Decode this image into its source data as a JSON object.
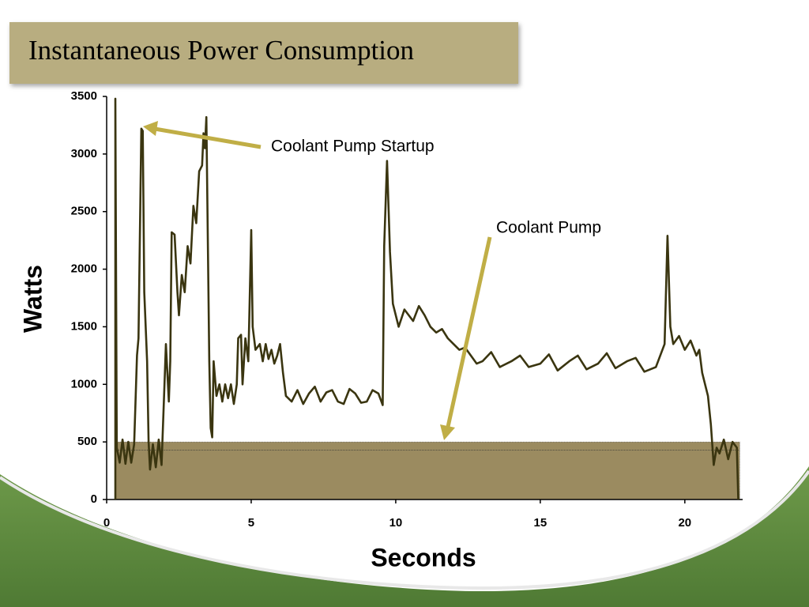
{
  "chart_data": {
    "type": "line",
    "title": "Instantaneous Power Consumption",
    "x_label": "Seconds",
    "y_label": "Watts",
    "xlim": [
      0,
      22
    ],
    "ylim": [
      0,
      3500
    ],
    "xticks": [
      0,
      5,
      10,
      15,
      20
    ],
    "yticks": [
      0,
      500,
      1000,
      1500,
      2000,
      2500,
      3000,
      3500
    ],
    "color": "#3a3510",
    "band": {
      "x": [
        0.3,
        21.9
      ],
      "value": 500,
      "color": "#9b8b60"
    },
    "reference_line": 430,
    "x": [
      0.3,
      0.3,
      0.35,
      0.45,
      0.55,
      0.65,
      0.75,
      0.85,
      0.95,
      1.05,
      1.1,
      1.2,
      1.25,
      1.3,
      1.4,
      1.45,
      1.5,
      1.6,
      1.7,
      1.8,
      1.9,
      2.0,
      2.05,
      2.15,
      2.2,
      2.25,
      2.35,
      2.45,
      2.5,
      2.6,
      2.7,
      2.8,
      2.9,
      3.0,
      3.1,
      3.2,
      3.3,
      3.35,
      3.4,
      3.45,
      3.55,
      3.6,
      3.65,
      3.7,
      3.8,
      3.9,
      4.0,
      4.1,
      4.2,
      4.3,
      4.4,
      4.5,
      4.55,
      4.65,
      4.7,
      4.8,
      4.9,
      4.95,
      5.0,
      5.05,
      5.15,
      5.3,
      5.4,
      5.5,
      5.6,
      5.7,
      5.8,
      5.9,
      6.0,
      6.1,
      6.2,
      6.4,
      6.6,
      6.8,
      7.0,
      7.2,
      7.4,
      7.6,
      7.8,
      8.0,
      8.2,
      8.4,
      8.6,
      8.8,
      9.0,
      9.2,
      9.4,
      9.55,
      9.6,
      9.7,
      9.8,
      9.9,
      10.1,
      10.3,
      10.6,
      10.8,
      11.0,
      11.2,
      11.4,
      11.6,
      11.8,
      12.0,
      12.2,
      12.4,
      12.6,
      12.8,
      13.0,
      13.3,
      13.6,
      14.0,
      14.3,
      14.6,
      15.0,
      15.3,
      15.6,
      16.0,
      16.3,
      16.6,
      17.0,
      17.3,
      17.6,
      18.0,
      18.3,
      18.6,
      19.0,
      19.3,
      19.4,
      19.5,
      19.6,
      19.8,
      20.0,
      20.2,
      20.4,
      20.5,
      20.6,
      20.8,
      20.9,
      21.0,
      21.1,
      21.2,
      21.35,
      21.5,
      21.65,
      21.8,
      21.85
    ],
    "values": [
      0,
      3480,
      450,
      320,
      520,
      310,
      500,
      320,
      480,
      1250,
      1400,
      3220,
      3200,
      1800,
      1200,
      500,
      260,
      480,
      280,
      520,
      300,
      1000,
      1350,
      850,
      1200,
      2320,
      2300,
      1800,
      1600,
      1950,
      1800,
      2200,
      2050,
      2550,
      2400,
      2850,
      2900,
      3180,
      3050,
      3320,
      1200,
      620,
      540,
      1200,
      900,
      1000,
      850,
      1000,
      880,
      1000,
      830,
      1000,
      1400,
      1430,
      1000,
      1400,
      1200,
      1750,
      2340,
      1500,
      1300,
      1350,
      1200,
      1350,
      1220,
      1300,
      1180,
      1250,
      1350,
      1100,
      900,
      850,
      950,
      830,
      920,
      980,
      850,
      930,
      950,
      850,
      830,
      960,
      920,
      840,
      850,
      950,
      920,
      820,
      2200,
      2940,
      2150,
      1700,
      1500,
      1650,
      1550,
      1680,
      1600,
      1500,
      1450,
      1480,
      1400,
      1350,
      1300,
      1320,
      1250,
      1180,
      1200,
      1280,
      1150,
      1200,
      1250,
      1150,
      1180,
      1260,
      1120,
      1200,
      1250,
      1130,
      1180,
      1270,
      1140,
      1200,
      1230,
      1110,
      1150,
      1350,
      2290,
      1500,
      1350,
      1420,
      1300,
      1380,
      1250,
      1300,
      1100,
      900,
      650,
      300,
      450,
      400,
      520,
      350,
      500,
      450,
      0
    ]
  }
}
